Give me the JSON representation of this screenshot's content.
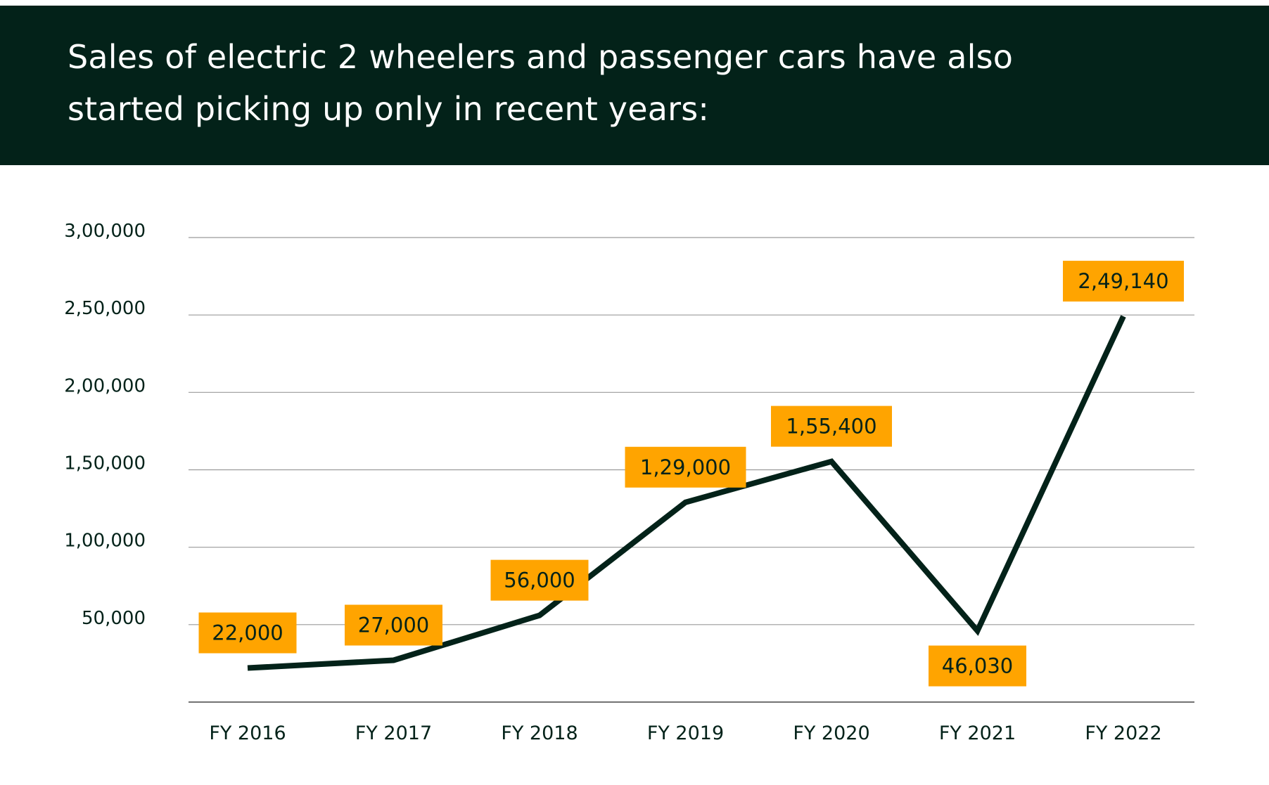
{
  "header": {
    "title": "Sales of electric 2 wheelers and passenger cars have also started picking up only in recent years:",
    "background_color": "#032219"
  },
  "chart_data": {
    "type": "line",
    "title": "Sales of electric 2 wheelers and passenger cars have also started picking up only in recent years:",
    "categories": [
      "FY 2016",
      "FY 2017",
      "FY 2018",
      "FY 2019",
      "FY 2020",
      "FY 2021",
      "FY 2022"
    ],
    "series": [
      {
        "values": [
          22000,
          27000,
          56000,
          129000,
          155400,
          46030,
          249140
        ],
        "data_labels": [
          "22,000",
          "27,000",
          "56,000",
          "1,29,000",
          "1,55,400",
          "46,030",
          "2,49,140"
        ]
      }
    ],
    "y_ticks": [
      50000,
      100000,
      150000,
      200000,
      250000,
      300000
    ],
    "y_tick_labels": [
      "50,000",
      "1,00,000",
      "1,50,000",
      "2,00,000",
      "2,50,000",
      "3,00,000"
    ],
    "ylim": [
      0,
      300000
    ],
    "grid": true,
    "label_positions": [
      "above",
      "above",
      "above",
      "above",
      "above",
      "below",
      "above"
    ],
    "colors": {
      "line": "#032219",
      "label_box": "#FFA400",
      "label_text": "#032219",
      "gridline": "#9a9a9a",
      "axis_text": "#032219"
    }
  }
}
